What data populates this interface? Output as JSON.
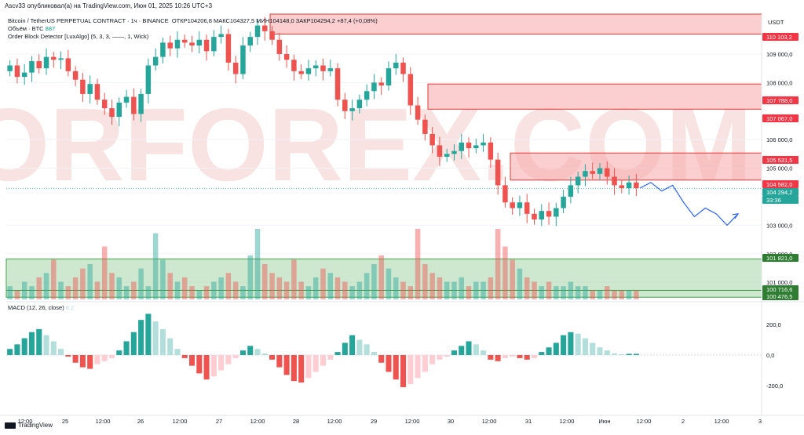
{
  "header": {
    "published": "Ascv33 опубликовал(а) на TradingView.com, Июн 01, 2025 10:26 UTC+3"
  },
  "legend": {
    "symbol_line": "Bitcoin / TetherUS PERPETUAL CONTRACT · 1ч · BINANCE",
    "ohlc": "ОТКР104206,8  МАКС104327,5  МИН104148,0  ЗАКР104294,2  +87,4 (+0,08%)",
    "volume_label": "Объём · BTC",
    "volume_value": "887",
    "indicator": "Order Block Detector [LuxAlgo] (5, 3, 3, ——, 1, Wick)"
  },
  "macd": {
    "label": "MACD (12, 26, close)",
    "value": "8,2"
  },
  "watermark": "TORFOREX.COM",
  "footer": {
    "brand": "TradingView"
  },
  "colors": {
    "up": "#26a69a",
    "down": "#ef5350",
    "bear_zone": "#f7a8a8",
    "bull_zone": "#a5d6a7",
    "forecast": "#2962ff"
  },
  "chart_data": {
    "type": "candlestick",
    "currency": "USDT",
    "y_ticks": [
      "109 000,0",
      "108 000,0",
      "106 000,0",
      "105 000,0",
      "103 000,0",
      "102 000,0",
      "101 000,0"
    ],
    "price_labels": [
      {
        "text": "110 103,2",
        "kind": "bear"
      },
      {
        "text": "107 788,0",
        "kind": "bear"
      },
      {
        "text": "107 067,0",
        "kind": "bear"
      },
      {
        "text": "105 531,5",
        "kind": "bear"
      },
      {
        "text": "104 582,0",
        "kind": "bear"
      },
      {
        "text": "104 294,2",
        "kind": "last"
      },
      {
        "text": "33:36",
        "kind": "timer"
      },
      {
        "text": "101 821,0",
        "kind": "bull"
      },
      {
        "text": "100 716,6",
        "kind": "bull"
      },
      {
        "text": "100 476,5",
        "kind": "bull"
      }
    ],
    "macd_ticks": [
      "200,0",
      "0,0",
      "-200,0"
    ],
    "x_labels": [
      "12:00",
      "25",
      "12:00",
      "26",
      "12:00",
      "27",
      "12:00",
      "28",
      "12:00",
      "29",
      "12:00",
      "30",
      "12:00",
      "31",
      "12:00",
      "Июн",
      "12:00",
      "2",
      "12:00",
      "3"
    ],
    "ylim": [
      100400,
      110400
    ],
    "order_blocks": [
      {
        "type": "bearish",
        "top": 110400,
        "bottom": 109700
      },
      {
        "type": "bearish",
        "top": 107950,
        "bottom": 107067
      },
      {
        "type": "bearish",
        "top": 105531.5,
        "bottom": 104582
      },
      {
        "type": "bullish",
        "top": 101821,
        "bottom": 100716.6
      },
      {
        "type": "bullish",
        "top": 100716.6,
        "bottom": 100476.5
      }
    ],
    "close_path": [
      108600,
      108200,
      108350,
      108750,
      108500,
      108900,
      108800,
      108850,
      108400,
      108100,
      107600,
      107950,
      107400,
      107100,
      106800,
      107300,
      107500,
      106900,
      107600,
      108600,
      108900,
      109400,
      109200,
      109500,
      109400,
      109300,
      109500,
      109100,
      109600,
      109700,
      108700,
      108300,
      109300,
      109600,
      110000,
      109800,
      109500,
      109000,
      108800,
      108400,
      108300,
      108500,
      108600,
      108400,
      108500,
      107400,
      107000,
      107100,
      107400,
      107700,
      108000,
      107900,
      108500,
      108700,
      108300,
      107200,
      106700,
      106200,
      105800,
      105400,
      105500,
      105600,
      105900,
      105700,
      105800,
      105900,
      105300,
      104400,
      103800,
      103600,
      103800,
      103400,
      103200,
      103500,
      103300,
      103600,
      104000,
      104400,
      104700,
      104900,
      104800,
      105000,
      104700,
      104400,
      104300,
      104500,
      104300
    ],
    "forecast_path": [
      104300,
      104500,
      104200,
      104400,
      103800,
      103300,
      103600,
      103400,
      103000,
      103400
    ],
    "volume": [
      3,
      2,
      4,
      3,
      5,
      6,
      9,
      4,
      3,
      5,
      7,
      8,
      4,
      12,
      6,
      5,
      3,
      4,
      7,
      3,
      15,
      9,
      6,
      4,
      5,
      3,
      2,
      3,
      4,
      5,
      6,
      4,
      3,
      10,
      16,
      8,
      6,
      5,
      4,
      9,
      4,
      3,
      5,
      7,
      6,
      5,
      4,
      3,
      4,
      6,
      8,
      10,
      7,
      5,
      4,
      3,
      16,
      8,
      6,
      5,
      4,
      4,
      5,
      3,
      4,
      4,
      5,
      16,
      12,
      9,
      7,
      5,
      4,
      3,
      4,
      3,
      3,
      4,
      3,
      3,
      2,
      2,
      3,
      2,
      2,
      2,
      2
    ],
    "macd_hist": [
      40,
      70,
      110,
      150,
      170,
      130,
      90,
      40,
      -10,
      -50,
      -80,
      -90,
      -60,
      -40,
      -20,
      30,
      90,
      150,
      230,
      270,
      220,
      170,
      110,
      40,
      -20,
      -70,
      -120,
      -160,
      -140,
      -100,
      -60,
      -20,
      30,
      60,
      40,
      10,
      -30,
      -80,
      -130,
      -170,
      -180,
      -150,
      -110,
      -70,
      -30,
      20,
      80,
      130,
      100,
      70,
      20,
      -50,
      -110,
      -160,
      -210,
      -190,
      -150,
      -110,
      -60,
      -30,
      -10,
      30,
      60,
      90,
      70,
      30,
      -30,
      -40,
      -20,
      -10,
      -20,
      -30,
      -20,
      20,
      50,
      80,
      130,
      150,
      140,
      110,
      80,
      50,
      30,
      10,
      5,
      8,
      8
    ]
  }
}
